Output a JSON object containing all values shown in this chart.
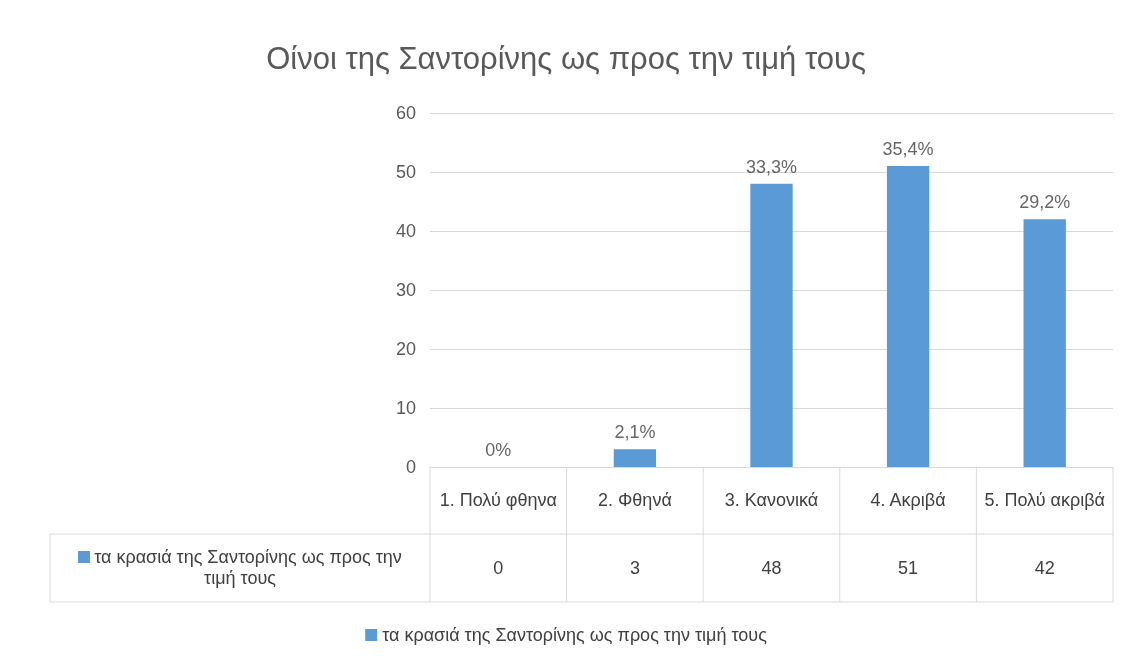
{
  "chart_data": {
    "type": "bar",
    "title": "Οίνοι της Σαντορίνης ως προς την τιμή τους",
    "categories": [
      "1. Πολύ φθηνα",
      "2. Φθηνά",
      "3. Κανονικά",
      "4. Ακριβά",
      "5. Πολύ ακριβά"
    ],
    "series": [
      {
        "name": "τα κρασιά της Σαντορίνης ως προς την τιμή τους",
        "color": "#5b9bd5",
        "values": [
          0,
          3,
          48,
          51,
          42
        ]
      }
    ],
    "annotations": [
      {
        "text": "0%",
        "x": "1. Πολύ φθηνα",
        "y": 0
      },
      {
        "text": "2,1%",
        "x": "2. Φθηνά",
        "y": 3
      },
      {
        "text": "33,3%",
        "x": "3. Κανονικά",
        "y": 48
      },
      {
        "text": "35,4%",
        "x": "4. Ακριβά",
        "y": 51
      },
      {
        "text": "29,2%",
        "x": "5. Πολύ ακριβά",
        "y": 42
      }
    ],
    "data_labels": true,
    "ylim": [
      0,
      60
    ],
    "yticks": [
      0,
      10,
      20,
      30,
      40,
      50,
      60
    ],
    "grid": "y",
    "legend": "bottom"
  }
}
